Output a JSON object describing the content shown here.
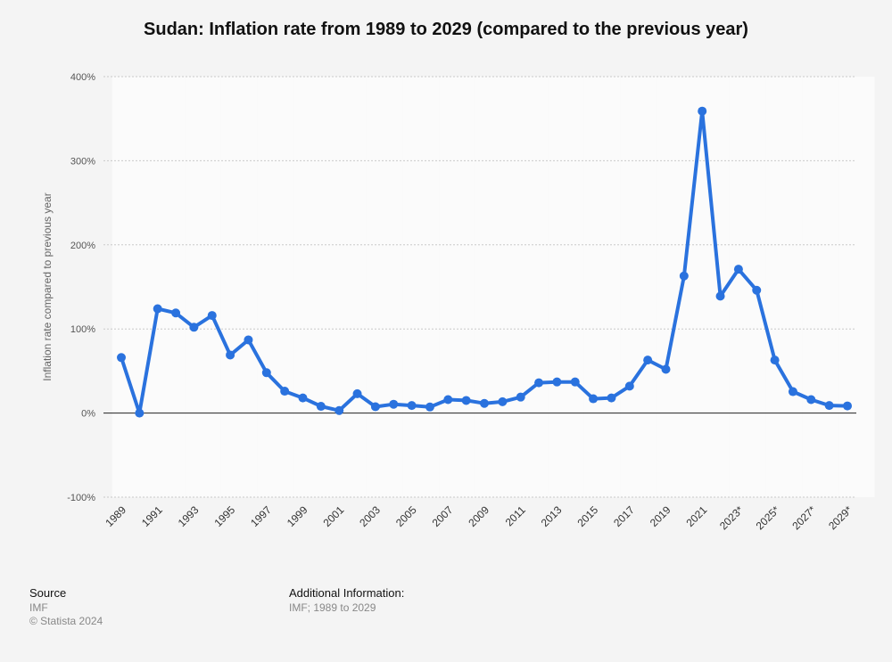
{
  "chart_data": {
    "type": "line",
    "title": "Sudan: Inflation rate from 1989 to 2029 (compared to the previous year)",
    "xlabel": "",
    "ylabel": "Inflation rate compared to previous year",
    "ylim": [
      -100,
      400
    ],
    "yticks": [
      -100,
      0,
      100,
      200,
      300,
      400
    ],
    "ytick_labels": [
      "-100%",
      "0%",
      "100%",
      "200%",
      "300%",
      "400%"
    ],
    "x": [
      "1989",
      "1990",
      "1991",
      "1992",
      "1993",
      "1994",
      "1995",
      "1996",
      "1997",
      "1998",
      "1999",
      "2000",
      "2001",
      "2002",
      "2003",
      "2004",
      "2005",
      "2006",
      "2007",
      "2008",
      "2009",
      "2010",
      "2011",
      "2012",
      "2013",
      "2014",
      "2015",
      "2016",
      "2017",
      "2018",
      "2019",
      "2020",
      "2021",
      "2022",
      "2023*",
      "2024*",
      "2025*",
      "2026*",
      "2027*",
      "2028*",
      "2029*"
    ],
    "xtick_labels": [
      "1989",
      "1991",
      "1993",
      "1995",
      "1997",
      "1999",
      "2001",
      "2003",
      "2005",
      "2007",
      "2009",
      "2011",
      "2013",
      "2015",
      "2017",
      "2019",
      "2021",
      "2023*",
      "2025*",
      "2027*",
      "2029*"
    ],
    "values": [
      66,
      0,
      124,
      119,
      102,
      116,
      69,
      87,
      48,
      26,
      18,
      8,
      3,
      23,
      7.5,
      10.5,
      9,
      7.2,
      16,
      15,
      11.5,
      13.5,
      19,
      36,
      37,
      37,
      17,
      18,
      32,
      63,
      52,
      163,
      359,
      139,
      171,
      146,
      63,
      25.5,
      16,
      9,
      8.5
    ],
    "grid": true,
    "legend": "none",
    "line_color": "#2a72de"
  },
  "footer": {
    "source_heading": "Source",
    "source_lines": [
      "IMF",
      "© Statista 2024"
    ],
    "info_heading": "Additional Information:",
    "info_lines": [
      "IMF; 1989 to 2029"
    ]
  }
}
